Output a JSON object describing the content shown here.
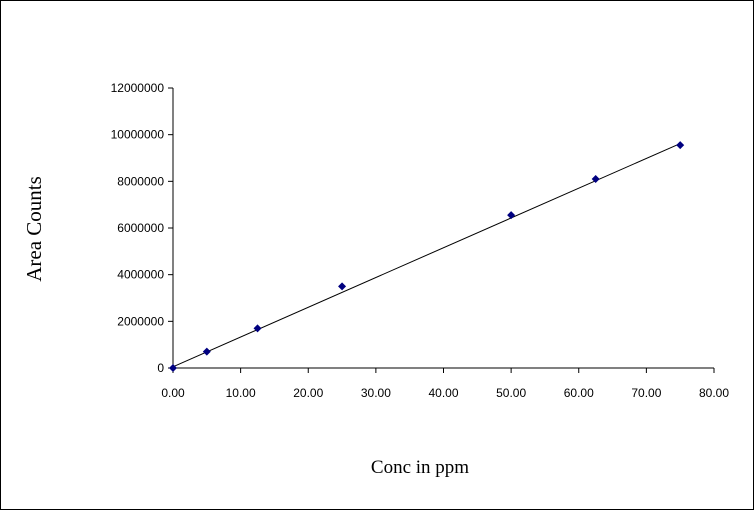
{
  "chart_data": {
    "type": "scatter",
    "title": "",
    "xlabel": "Conc in ppm",
    "ylabel": "Area Counts",
    "xlim": [
      0,
      80
    ],
    "ylim": [
      0,
      12000000
    ],
    "x_ticks": [
      "0.00",
      "10.00",
      "20.00",
      "30.00",
      "40.00",
      "50.00",
      "60.00",
      "70.00",
      "80.00"
    ],
    "y_ticks": [
      "0",
      "2000000",
      "4000000",
      "6000000",
      "8000000",
      "10000000",
      "12000000"
    ],
    "grid": false,
    "legend": "none",
    "series": [
      {
        "x": [
          0,
          5,
          12.5,
          25,
          50,
          62.5,
          75
        ],
        "y": [
          0,
          700000,
          1700000,
          3500000,
          6550000,
          8100000,
          9550000
        ],
        "color": "#000080",
        "marker": "diamond"
      }
    ],
    "trendline": {
      "type": "linear",
      "x": [
        0,
        75
      ],
      "y": [
        50000,
        9620000
      ],
      "color": "#000000"
    }
  }
}
